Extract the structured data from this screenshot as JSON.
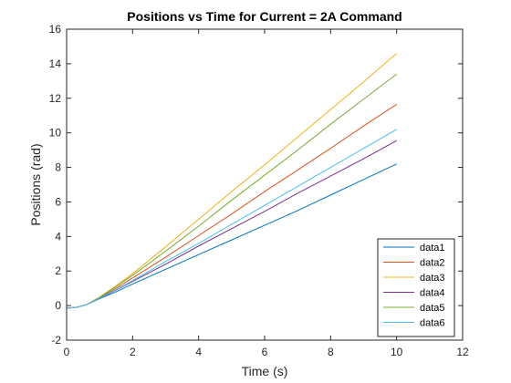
{
  "chart_data": {
    "type": "line",
    "title": "Positions vs Time for Current = 2A Command",
    "xlabel": "Time (s)",
    "ylabel": "Positions (rad)",
    "xlim": [
      0,
      12
    ],
    "ylim": [
      -2,
      16
    ],
    "xticks": [
      0,
      2,
      4,
      6,
      8,
      10,
      12
    ],
    "yticks": [
      -2,
      0,
      2,
      4,
      6,
      8,
      10,
      12,
      14,
      16
    ],
    "grid": false,
    "legend_position": "bottom-right",
    "series": [
      {
        "name": "data1",
        "color": "#0072BD",
        "x": [
          0,
          0.3,
          0.6,
          1,
          1.5,
          2,
          3,
          4,
          5,
          6,
          7,
          8,
          9,
          10
        ],
        "y": [
          -0.15,
          -0.1,
          0.05,
          0.4,
          0.8,
          1.25,
          2.1,
          2.95,
          3.8,
          4.65,
          5.5,
          6.4,
          7.3,
          8.2
        ]
      },
      {
        "name": "data2",
        "color": "#D95319",
        "x": [
          0,
          0.3,
          0.6,
          1,
          1.5,
          2,
          3,
          4,
          5,
          6,
          7,
          8,
          9,
          10
        ],
        "y": [
          -0.15,
          -0.1,
          0.05,
          0.45,
          1.0,
          1.6,
          2.8,
          4.05,
          5.3,
          6.6,
          7.85,
          9.1,
          10.4,
          11.65
        ]
      },
      {
        "name": "data3",
        "color": "#EDB120",
        "x": [
          0,
          0.3,
          0.6,
          1,
          1.5,
          2,
          3,
          4,
          5,
          6,
          7,
          8,
          9,
          10
        ],
        "y": [
          -0.15,
          -0.1,
          0.05,
          0.5,
          1.15,
          1.85,
          3.4,
          5.0,
          6.6,
          8.15,
          9.75,
          11.35,
          12.95,
          14.6
        ]
      },
      {
        "name": "data4",
        "color": "#7E2F8E",
        "x": [
          0,
          0.3,
          0.6,
          1,
          1.5,
          2,
          3,
          4,
          5,
          6,
          7,
          8,
          9,
          10
        ],
        "y": [
          -0.15,
          -0.1,
          0.05,
          0.42,
          0.9,
          1.4,
          2.4,
          3.45,
          4.45,
          5.45,
          6.5,
          7.5,
          8.5,
          9.55
        ]
      },
      {
        "name": "data5",
        "color": "#77AC30",
        "x": [
          0,
          0.3,
          0.6,
          1,
          1.5,
          2,
          3,
          4,
          5,
          6,
          7,
          8,
          9,
          10
        ],
        "y": [
          -0.15,
          -0.1,
          0.05,
          0.48,
          1.1,
          1.75,
          3.15,
          4.6,
          6.1,
          7.55,
          9.0,
          10.5,
          11.95,
          13.4
        ]
      },
      {
        "name": "data6",
        "color": "#4DBEEE",
        "x": [
          0,
          0.3,
          0.6,
          1,
          1.5,
          2,
          3,
          4,
          5,
          6,
          7,
          8,
          9,
          10
        ],
        "y": [
          -0.15,
          -0.1,
          0.05,
          0.43,
          0.92,
          1.45,
          2.55,
          3.6,
          4.7,
          5.8,
          6.9,
          8.0,
          9.1,
          10.2
        ]
      }
    ]
  }
}
